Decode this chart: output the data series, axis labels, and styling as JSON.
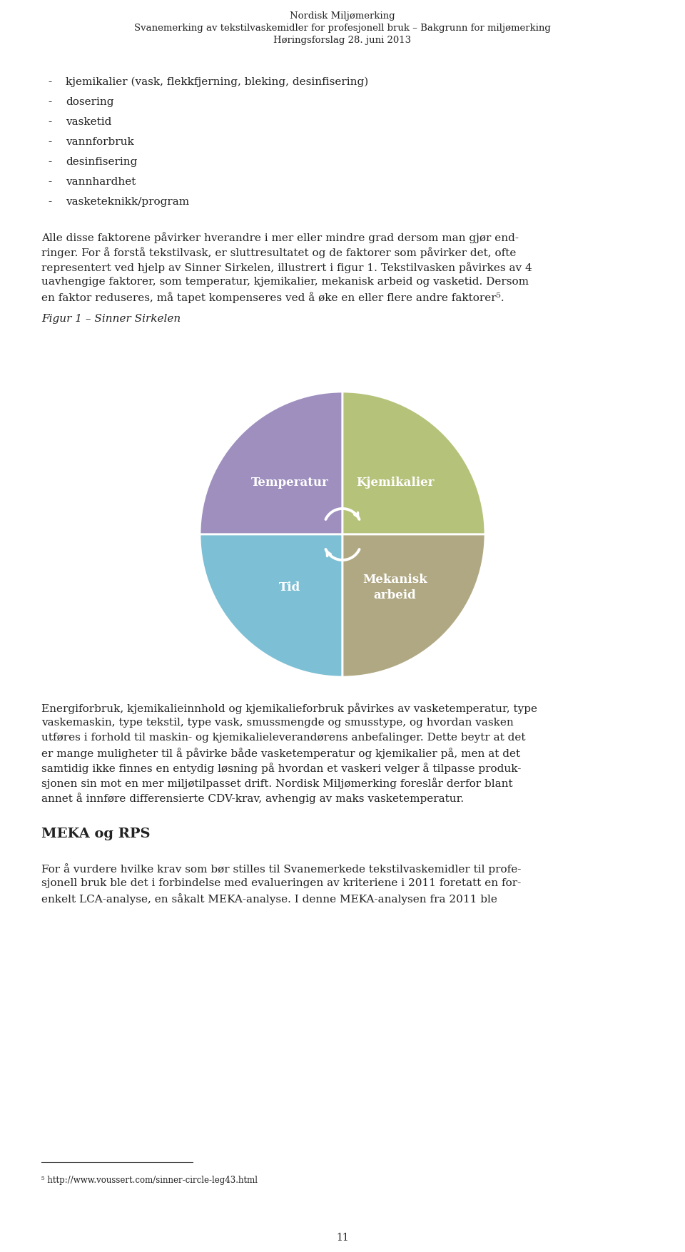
{
  "background_color": "#ffffff",
  "page_width": 9.6,
  "page_height": 17.56,
  "header_lines": [
    "Nordisk Miljømerking",
    "Svanemerking av tekstilvaskemidler for profesjonell bruk – Bakgrunn for miljømerking",
    "Høringsforslag 28. juni 2013"
  ],
  "bullet_items": [
    "kjemikalier (vask, flekkfjerning, bleking, desinfisering)",
    "dosering",
    "vasketid",
    "vannforbruk",
    "desinfisering",
    "vannhardhet",
    "vasketeknikk/program"
  ],
  "paragraph1_lines": [
    "Alle disse faktorene påvirker hverandre i mer eller mindre grad dersom man gjør end-",
    "ringer. For å forstå tekstilvask, er sluttresultatet og de faktorer som påvirker det, ofte",
    "representert ved hjelp av Sinner Sirkelen, illustrert i figur 1. Tekstilvasken påvirkes av 4",
    "uavhengige faktorer, som temperatur, kjemikalier, mekanisk arbeid og vasketid. Dersom",
    "en faktor reduseres, må tapet kompenseres ved å øke en eller flere andre faktorer⁵."
  ],
  "figur_caption": "Figur 1 – Sinner Sirkelen",
  "circle_segments": {
    "temperatur": {
      "label": "Temperatur",
      "color": "#9e8fbf",
      "text_color": "#ffffff"
    },
    "kjemikalier": {
      "label": "Kjemikalier",
      "color": "#b5c27a",
      "text_color": "#ffffff"
    },
    "tid": {
      "label": "Tid",
      "color": "#7dbfd4",
      "text_color": "#ffffff"
    },
    "mekanisk": {
      "label": "Mekanisk\narbeid",
      "color": "#b0a882",
      "text_color": "#ffffff"
    }
  },
  "paragraph2_lines": [
    "Energiforbruk, kjemikalieinnhold og kjemikalieforbruk påvirkes av vasketemperatur, type",
    "vaskemaskin, type tekstil, type vask, smussmengde og smusstype, og hvordan vasken",
    "utføres i forhold til maskin- og kjemikalieleverandørens anbefalinger. Dette beytr at det",
    "er mange muligheter til å påvirke både vasketemperatur og kjemikalier på, men at det",
    "samtidig ikke finnes en entydig løsning på hvordan et vaskeri velger å tilpasse produk-",
    "sjonen sin mot en mer miljøtilpasset drift. Nordisk Miljømerking foreslår derfor blant",
    "annet å innføre differensierte CDV-krav, avhengig av maks vasketemperatur."
  ],
  "heading2": "MEKA og RPS",
  "paragraph3_lines": [
    "For å vurdere hvilke krav som bør stilles til Svanemerkede tekstilvaskemidler til profe-",
    "sjonell bruk ble det i forbindelse med evalueringen av kriteriene i 2011 foretatt en for-",
    "enkelt LCA-analyse, en såkalt MEKA-analyse. I denne MEKA-analysen fra 2011 ble"
  ],
  "footnote": "⁵ http://www.voussert.com/sinner-circle-leg43.html",
  "page_number": "11",
  "font_family": "serif"
}
